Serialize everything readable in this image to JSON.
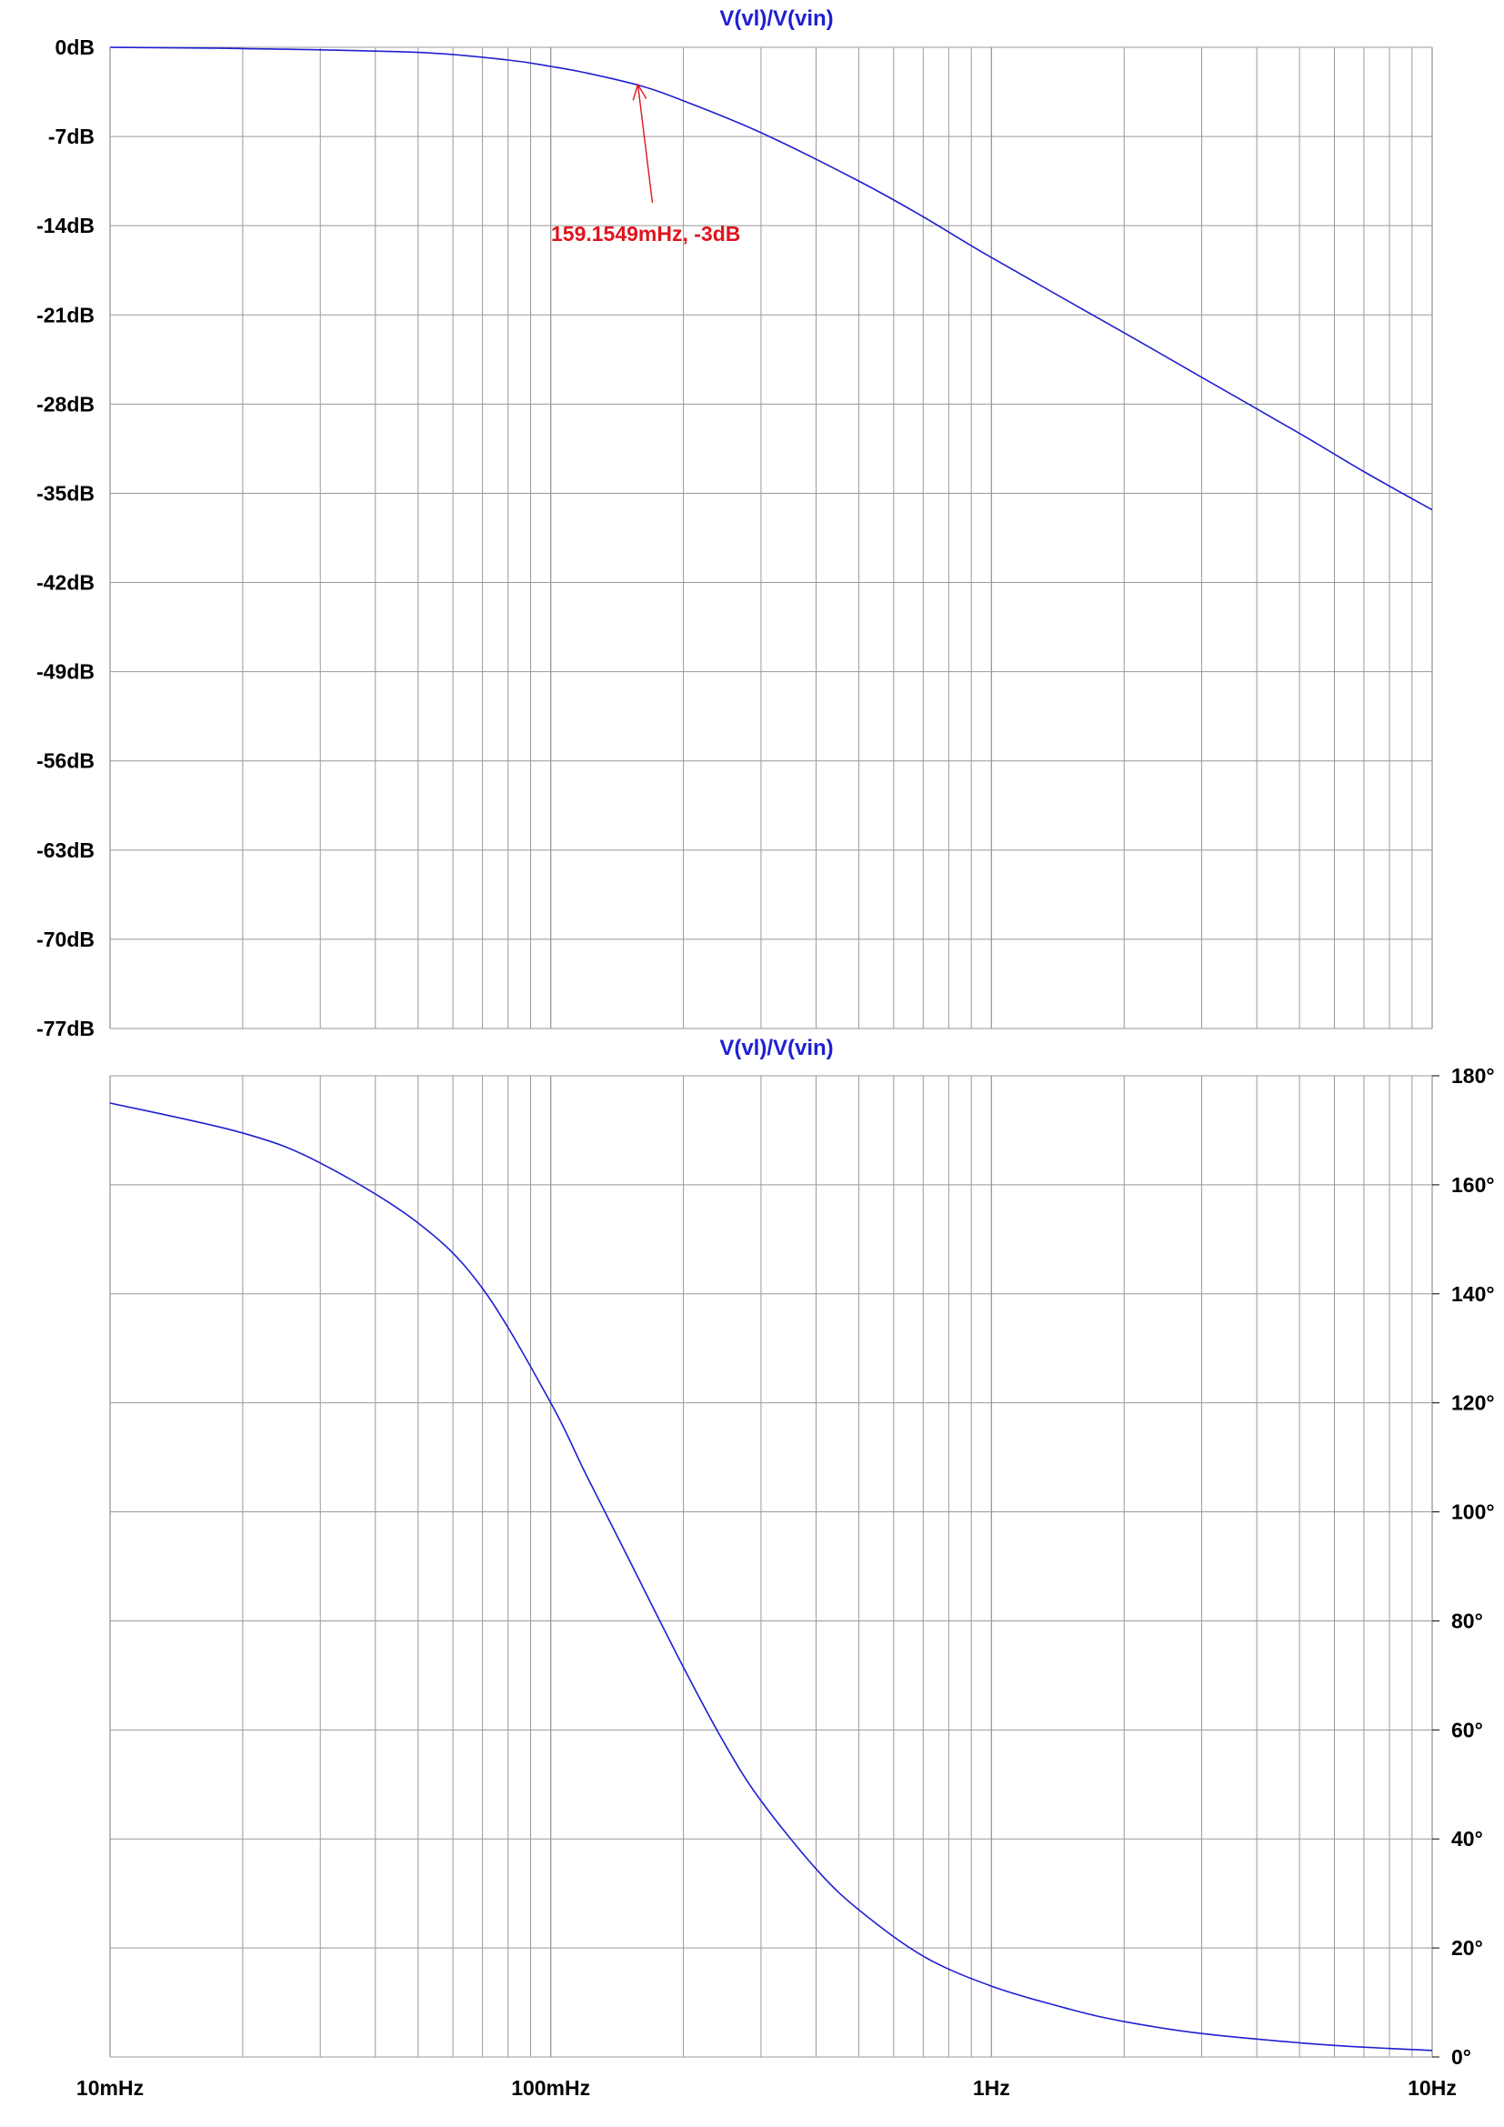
{
  "chart_data": [
    {
      "type": "line",
      "title": "V(vl)/V(vin)",
      "xscale": "log",
      "xlim": [
        0.01,
        10
      ],
      "ylim": [
        -77,
        0
      ],
      "y_ticks": [
        "0dB",
        "-7dB",
        "-14dB",
        "-21dB",
        "-28dB",
        "-35dB",
        "-42dB",
        "-49dB",
        "-56dB",
        "-63dB",
        "-70dB",
        "-77dB"
      ],
      "y_axis_side": "left",
      "grid": true,
      "series": [
        {
          "x": [
            0.01,
            0.02,
            0.05,
            0.08,
            0.1,
            0.12,
            0.159,
            0.2,
            0.3,
            0.5,
            0.7,
            1,
            2,
            3,
            5,
            7,
            10
          ],
          "y": [
            0,
            -0.1,
            -0.4,
            -1.0,
            -1.5,
            -2.0,
            -3.0,
            -4.2,
            -6.7,
            -10.5,
            -13.3,
            -16.5,
            -22.4,
            -25.9,
            -30.3,
            -33.3,
            -36.3
          ]
        }
      ],
      "annotations": [
        {
          "text": "159.1549mHz, -3dB",
          "x": 0.1591549,
          "y": -3
        }
      ]
    },
    {
      "type": "line",
      "title": "V(vl)/V(vin)",
      "xscale": "log",
      "xlim": [
        0.01,
        10
      ],
      "ylim": [
        0,
        180
      ],
      "x_ticks": [
        "10mHz",
        "100mHz",
        "1Hz",
        "10Hz"
      ],
      "y_ticks": [
        "180°",
        "160°",
        "140°",
        "120°",
        "100°",
        "80°",
        "60°",
        "40°",
        "20°",
        "0°"
      ],
      "y_axis_side": "right",
      "grid": true,
      "series": [
        {
          "x": [
            0.01,
            0.02,
            0.03,
            0.05,
            0.07,
            0.1,
            0.12,
            0.15,
            0.2,
            0.25,
            0.3,
            0.4,
            0.5,
            0.7,
            1,
            1.5,
            2,
            3,
            5,
            7,
            10
          ],
          "y": [
            175,
            169.5,
            164,
            153,
            141,
            120,
            107,
            91.5,
            71.5,
            57,
            47,
            34.5,
            27,
            18.5,
            13,
            8.8,
            6.5,
            4.3,
            2.6,
            1.8,
            1.2
          ]
        }
      ]
    }
  ],
  "colors": {
    "trace": "#1f1fd2",
    "title": "#1f1fd2",
    "annotation": "#e0141e",
    "grid": "#999999",
    "text": "#000000"
  }
}
